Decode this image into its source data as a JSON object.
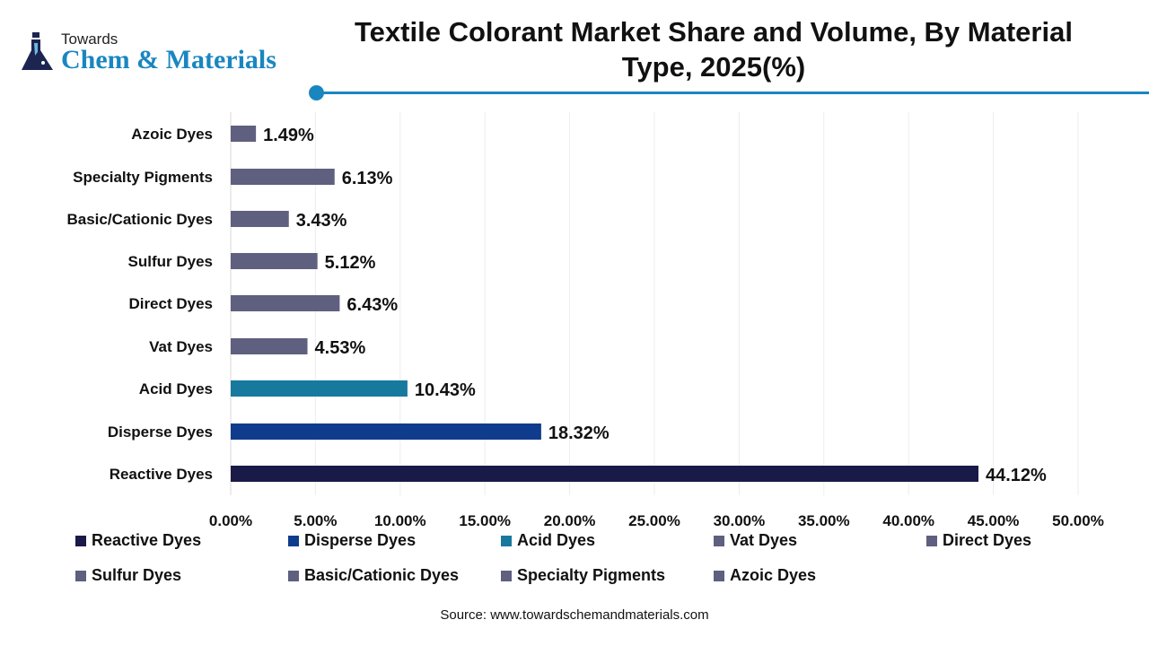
{
  "logo": {
    "line1": "Towards",
    "line2": "Chem & Materials"
  },
  "chart_data": {
    "type": "bar",
    "orientation": "horizontal",
    "title": "Textile Colorant Market Share and Volume, By Material Type, 2025(%)",
    "categories": [
      "Azoic Dyes",
      "Specialty Pigments",
      "Basic/Cationic Dyes",
      "Sulfur Dyes",
      "Direct Dyes",
      "Vat Dyes",
      "Acid Dyes",
      "Disperse Dyes",
      "Reactive Dyes"
    ],
    "values": [
      1.49,
      6.13,
      3.43,
      5.12,
      6.43,
      4.53,
      10.43,
      18.32,
      44.12
    ],
    "data_labels": [
      "1.49%",
      "6.13%",
      "3.43%",
      "5.12%",
      "6.43%",
      "4.53%",
      "10.43%",
      "18.32%",
      "44.12%"
    ],
    "colors": [
      "#5f5f80",
      "#5f5f80",
      "#5f5f80",
      "#5f5f80",
      "#5f5f80",
      "#5f5f80",
      "#17799e",
      "#0f3c8c",
      "#191a47"
    ],
    "xlim": [
      0,
      50
    ],
    "x_ticks": [
      "0.00%",
      "5.00%",
      "10.00%",
      "15.00%",
      "20.00%",
      "25.00%",
      "30.00%",
      "35.00%",
      "40.00%",
      "45.00%",
      "50.00%"
    ],
    "grid": true,
    "legend_position": "bottom",
    "legend": [
      {
        "label": "Reactive Dyes",
        "color": "#191a47"
      },
      {
        "label": "Disperse Dyes",
        "color": "#0f3c8c"
      },
      {
        "label": "Acid Dyes",
        "color": "#17799e"
      },
      {
        "label": "Vat Dyes",
        "color": "#5f5f80"
      },
      {
        "label": "Direct Dyes",
        "color": "#5f5f80"
      },
      {
        "label": "Sulfur Dyes",
        "color": "#5f5f80"
      },
      {
        "label": "Basic/Cationic Dyes",
        "color": "#5f5f80"
      },
      {
        "label": "Specialty Pigments",
        "color": "#5f5f80"
      },
      {
        "label": "Azoic Dyes",
        "color": "#5f5f80"
      }
    ]
  },
  "source": "Source: www.towardschemandmaterials.com"
}
